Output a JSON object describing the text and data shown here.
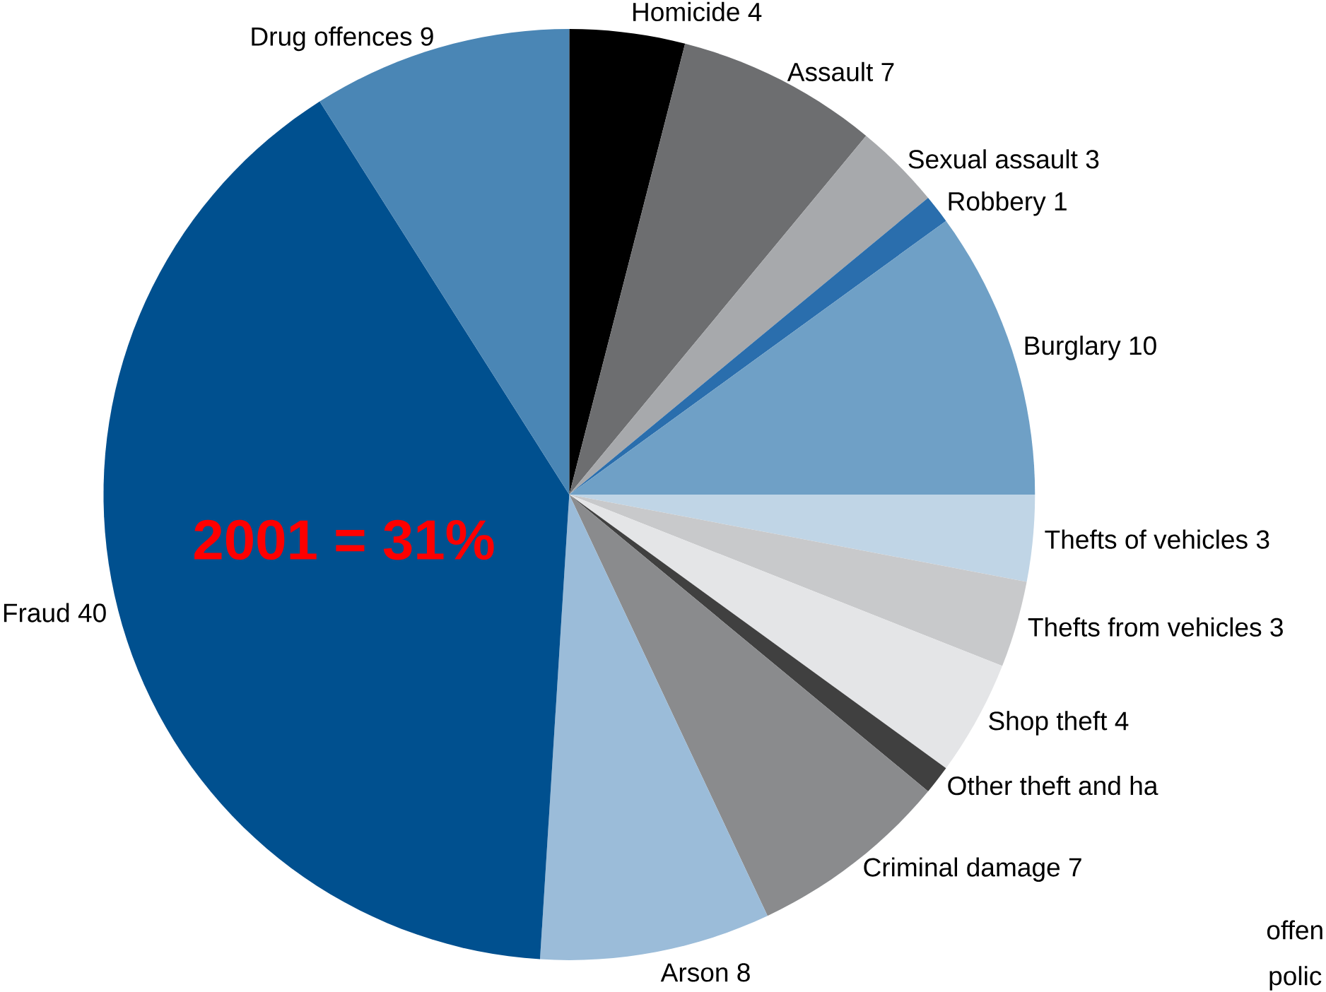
{
  "chart_data": {
    "type": "pie",
    "categories": [
      "Homicide 4",
      "Assault 7",
      "Sexual assault 3",
      "Robbery 1",
      "Burglary 10",
      "Thefts of vehicles 3",
      "Thefts from vehicles 3",
      "Shop theft 4",
      "Other theft and ha",
      "Criminal damage 7",
      "Arson 8",
      "Fraud 40",
      "Drug offences 9"
    ],
    "values": [
      4,
      7,
      3,
      1,
      10,
      3,
      3,
      4,
      1,
      7,
      8,
      40,
      9
    ],
    "colors": [
      "#000000",
      "#6d6e70",
      "#a7a9ac",
      "#2a6ead",
      "#6fa0c6",
      "#c0d5e6",
      "#c8c9cb",
      "#e4e5e7",
      "#404040",
      "#8a8b8d",
      "#9bbcd9",
      "#00508f",
      "#4a86b5"
    ],
    "annotations": [
      "2001 = 31%",
      "offen",
      "polic"
    ]
  }
}
